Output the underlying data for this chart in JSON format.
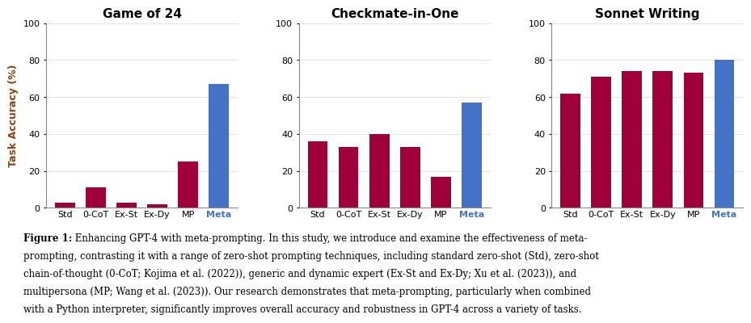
{
  "charts": [
    {
      "title": "Game of 24",
      "categories": [
        "Std",
        "0-CoT",
        "Ex-St",
        "Ex-Dy",
        "MP",
        "Meta"
      ],
      "values": [
        3,
        11,
        3,
        2,
        25,
        67
      ],
      "colors": [
        "#A0003A",
        "#A0003A",
        "#A0003A",
        "#A0003A",
        "#A0003A",
        "#4472C4"
      ],
      "ylim": [
        0,
        100
      ],
      "yticks": [
        0,
        20,
        40,
        60,
        80,
        100
      ]
    },
    {
      "title": "Checkmate-in-One",
      "categories": [
        "Std",
        "0-CoT",
        "Ex-St",
        "Ex-Dy",
        "MP",
        "Meta"
      ],
      "values": [
        36,
        33,
        40,
        33,
        17,
        57
      ],
      "colors": [
        "#A0003A",
        "#A0003A",
        "#A0003A",
        "#A0003A",
        "#A0003A",
        "#4472C4"
      ],
      "ylim": [
        0,
        100
      ],
      "yticks": [
        0,
        20,
        40,
        60,
        80,
        100
      ]
    },
    {
      "title": "Sonnet Writing",
      "categories": [
        "Std",
        "0-CoT",
        "Ex-St",
        "Ex-Dy",
        "MP",
        "Meta"
      ],
      "values": [
        62,
        71,
        74,
        74,
        73,
        80
      ],
      "colors": [
        "#A0003A",
        "#A0003A",
        "#A0003A",
        "#A0003A",
        "#A0003A",
        "#4472C4"
      ],
      "ylim": [
        0,
        100
      ],
      "yticks": [
        0,
        20,
        40,
        60,
        80,
        100
      ]
    }
  ],
  "ylabel": "Task Accuracy (%)",
  "caption_bold": "Figure 1:",
  "caption_lines": [
    " Enhancing GPT-4 with meta-prompting. In this study, we introduce and examine the effectiveness of meta-",
    "prompting, contrasting it with a range of zero-shot prompting techniques, including standard zero-shot (Std), zero-shot",
    "chain-of-thought (0-CoT; Kojima et al. (2022)), generic and dynamic expert (Ex-St and Ex-Dy; Xu et al. (2023)), and",
    "multipersona (MP; Wang et al. (2023)). Our research demonstrates that meta-prompting, particularly when combined",
    "with a Python interpreter, significantly improves overall accuracy and robustness in GPT-4 across a variety of tasks."
  ],
  "bar_color_dark_red": "#A0003A",
  "bar_color_blue": "#4472C4",
  "background_color": "#FFFFFF",
  "title_fontsize": 11,
  "axis_label_fontsize": 9,
  "tick_fontsize": 8,
  "caption_fontsize": 8.5,
  "ylabel_color": "#8B4513"
}
